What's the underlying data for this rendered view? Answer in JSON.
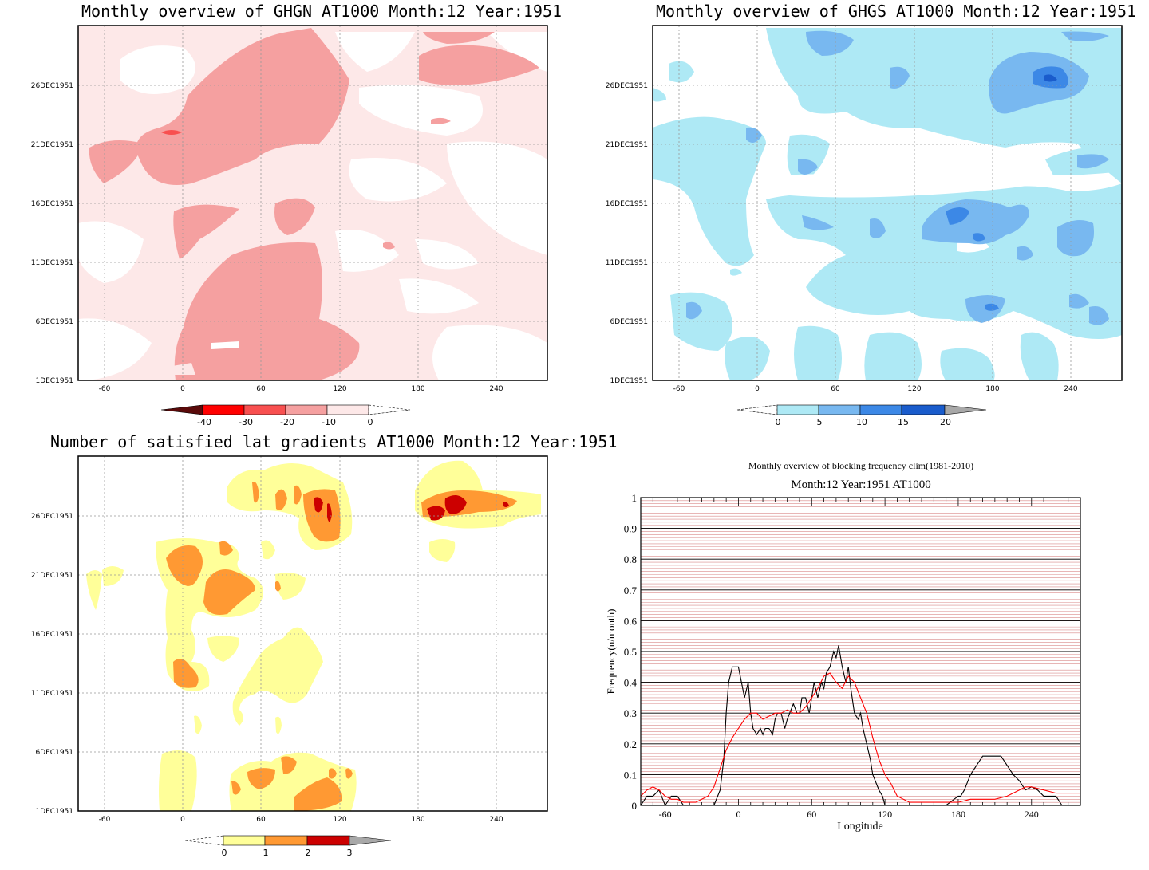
{
  "panels": {
    "ghgn": {
      "title": "Monthly overview of GHGN AT1000 Month:12 Year:1951",
      "colors": [
        "#5a0a0a",
        "#ff0000",
        "#f85050",
        "#f5a0a0",
        "#fde8e8",
        "#ffffff"
      ],
      "colorbar_labels": [
        "-40",
        "-30",
        "-20",
        "-10",
        "0"
      ]
    },
    "ghgs": {
      "title": "Monthly overview of GHGS AT1000 Month:12 Year:1951",
      "colors": [
        "#ffffff",
        "#aee9f5",
        "#78b8f0",
        "#3c88e6",
        "#1a5ccc",
        "#a8a8a8"
      ],
      "colorbar_labels": [
        "0",
        "5",
        "10",
        "15",
        "20"
      ]
    },
    "gradients": {
      "title": "Number of satisfied lat gradients AT1000 Month:12 Year:1951",
      "colors": [
        "#ffffff",
        "#ffff99",
        "#ff9933",
        "#cc0000",
        "#a8a8a8"
      ],
      "colorbar_labels": [
        "0",
        "1",
        "2",
        "3"
      ]
    }
  },
  "map_axes": {
    "x_ticks": [
      "-60",
      "0",
      "60",
      "120",
      "180",
      "240"
    ],
    "y_ticks": [
      "1DEC1951",
      "6DEC1951",
      "11DEC1951",
      "16DEC1951",
      "21DEC1951",
      "26DEC1951"
    ]
  },
  "chart_data": {
    "type": "line",
    "title": "Monthly overview of blocking frequency clim(1981-2010)",
    "subtitle": "Month:12 Year:1951  AT1000",
    "xlabel": "Longitude",
    "ylabel": "Frequency(n/month)",
    "xlim": [
      -80,
      280
    ],
    "ylim": [
      0,
      1
    ],
    "x_ticks": [
      "-60",
      "0",
      "60",
      "120",
      "180",
      "240"
    ],
    "y_ticks": [
      "0",
      "0.1",
      "0.2",
      "0.3",
      "0.4",
      "0.5",
      "0.6",
      "0.7",
      "0.8",
      "0.9",
      "1"
    ],
    "series": [
      {
        "color": "#000000",
        "x": [
          -80,
          -75,
          -70,
          -65,
          -60,
          -55,
          -50,
          -45,
          -40,
          -35,
          -30,
          -25,
          -20,
          -15,
          -12,
          -10,
          -8,
          -5,
          -2,
          0,
          5,
          8,
          10,
          12,
          15,
          18,
          20,
          22,
          25,
          28,
          30,
          32,
          35,
          38,
          40,
          42,
          45,
          48,
          50,
          52,
          55,
          58,
          60,
          62,
          65,
          68,
          70,
          72,
          75,
          78,
          80,
          82,
          85,
          88,
          90,
          92,
          95,
          98,
          100,
          102,
          105,
          108,
          110,
          112,
          115,
          118,
          120,
          122,
          125,
          130,
          135,
          140,
          150,
          160,
          170,
          180,
          182,
          185,
          188,
          190,
          195,
          200,
          205,
          210,
          215,
          220,
          225,
          230,
          235,
          240,
          245,
          250,
          255,
          260,
          265,
          270
        ],
        "y": [
          0,
          0.03,
          0.03,
          0.05,
          0,
          0.03,
          0.03,
          0,
          0,
          0,
          0,
          0,
          0,
          0.05,
          0.15,
          0.3,
          0.4,
          0.45,
          0.45,
          0.45,
          0.35,
          0.4,
          0.3,
          0.25,
          0.23,
          0.25,
          0.23,
          0.25,
          0.25,
          0.23,
          0.28,
          0.3,
          0.3,
          0.25,
          0.28,
          0.3,
          0.33,
          0.3,
          0.3,
          0.35,
          0.35,
          0.3,
          0.35,
          0.4,
          0.35,
          0.4,
          0.38,
          0.43,
          0.45,
          0.5,
          0.48,
          0.52,
          0.45,
          0.4,
          0.45,
          0.38,
          0.3,
          0.28,
          0.3,
          0.25,
          0.2,
          0.15,
          0.1,
          0.08,
          0.05,
          0.03,
          0,
          0,
          0,
          0,
          0,
          0,
          0,
          0,
          0,
          0.03,
          0.03,
          0.05,
          0.08,
          0.1,
          0.13,
          0.16,
          0.16,
          0.16,
          0.16,
          0.13,
          0.1,
          0.08,
          0.05,
          0.06,
          0.05,
          0.03,
          0.03,
          0.03,
          0,
          0
        ]
      },
      {
        "color": "#ff0000",
        "x": [
          -80,
          -75,
          -70,
          -65,
          -60,
          -55,
          -50,
          -45,
          -40,
          -35,
          -30,
          -25,
          -20,
          -15,
          -10,
          -5,
          0,
          5,
          10,
          15,
          20,
          25,
          30,
          35,
          40,
          45,
          50,
          55,
          60,
          65,
          70,
          75,
          80,
          85,
          90,
          95,
          100,
          105,
          110,
          115,
          120,
          125,
          130,
          140,
          150,
          160,
          170,
          180,
          190,
          200,
          210,
          220,
          230,
          235,
          240,
          250,
          260,
          270,
          280
        ],
        "y": [
          0.03,
          0.05,
          0.06,
          0.05,
          0.03,
          0.02,
          0.02,
          0.01,
          0.01,
          0.01,
          0.02,
          0.03,
          0.06,
          0.12,
          0.18,
          0.22,
          0.25,
          0.28,
          0.3,
          0.3,
          0.28,
          0.29,
          0.3,
          0.3,
          0.31,
          0.3,
          0.3,
          0.32,
          0.35,
          0.38,
          0.42,
          0.43,
          0.4,
          0.38,
          0.42,
          0.4,
          0.35,
          0.3,
          0.22,
          0.15,
          0.1,
          0.07,
          0.03,
          0.01,
          0.01,
          0.01,
          0.01,
          0.01,
          0.02,
          0.02,
          0.02,
          0.03,
          0.05,
          0.06,
          0.06,
          0.05,
          0.04,
          0.04,
          0.04
        ]
      }
    ]
  }
}
